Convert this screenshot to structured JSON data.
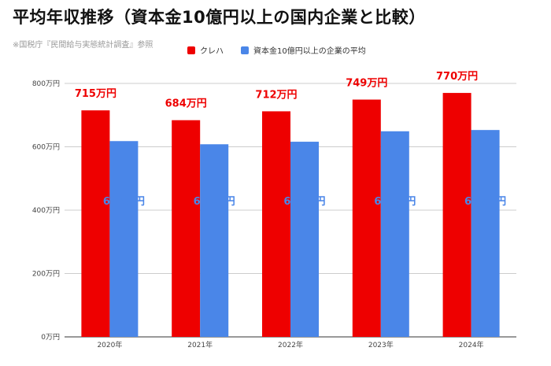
{
  "title": "平均年収推移（資本金10億円以上の国内企業と比較）",
  "source": "※国税庁『民間給与実態統計調査』参照",
  "legend": [
    "クレハ",
    "資本金10億円以上の企業の平均"
  ],
  "colors": {
    "series1": "#ee0000",
    "series2": "#4a86e8"
  },
  "chart_data": {
    "type": "bar",
    "categories": [
      "2020年",
      "2021年",
      "2022年",
      "2023年",
      "2024年"
    ],
    "series": [
      {
        "name": "クレハ",
        "values": [
          715,
          684,
          712,
          749,
          770
        ],
        "labels": [
          "715万円",
          "684万円",
          "712万円",
          "749万円",
          "770万円"
        ]
      },
      {
        "name": "資本金10億円以上の企業の平均",
        "values": [
          618,
          608,
          616,
          649,
          653
        ],
        "labels": [
          "618万円",
          "608万円",
          "616万円",
          "649万円",
          "653万円"
        ]
      }
    ],
    "ylim": [
      0,
      800
    ],
    "yticks": [
      0,
      200,
      400,
      600,
      800
    ],
    "ytick_labels": [
      "0万円",
      "200万円",
      "400万円",
      "600万円",
      "800万円"
    ],
    "grid": true,
    "legend_position": "top"
  }
}
